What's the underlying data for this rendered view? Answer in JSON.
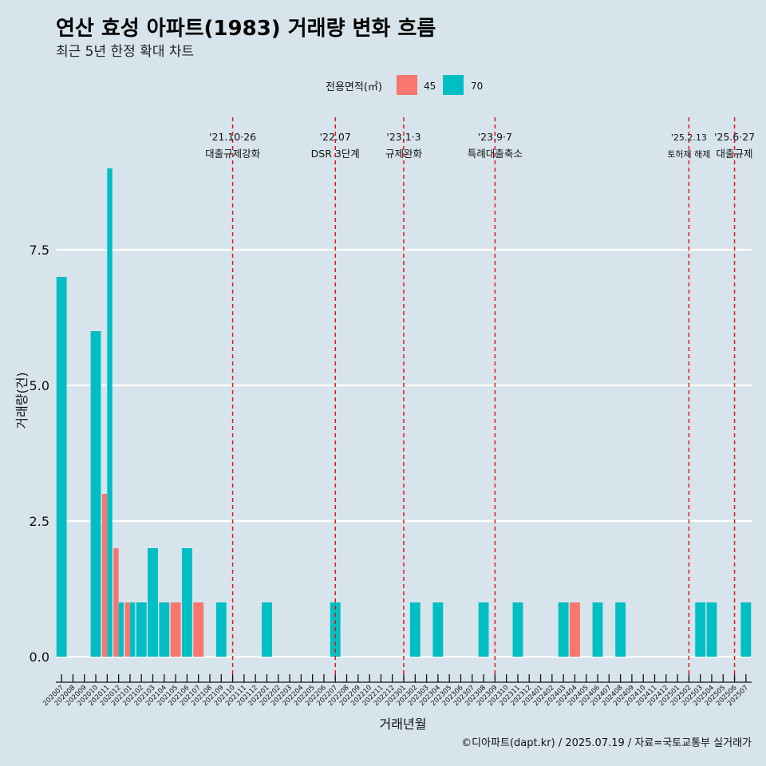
{
  "chart_data": {
    "type": "bar",
    "title": "연산 효성 아파트(1983) 거래량 변화 흐름",
    "subtitle": "최근 5년 한정 확대 차트",
    "xlabel": "거래년월",
    "ylabel": "거래량(건)",
    "caption": "©디아파트(dapt.kr) / 2025.07.19 / 자료=국토교통부 실거래가",
    "legend": {
      "title": "전용면적(㎡)",
      "position": "top"
    },
    "ylim": [
      0,
      9
    ],
    "yticks": [
      0,
      2.5,
      5,
      7.5
    ],
    "ytick_labels": [
      "0.0",
      "2.5",
      "5.0",
      "7.5"
    ],
    "grid": true,
    "categories": [
      "202007",
      "202008",
      "202009",
      "202010",
      "202011",
      "202012",
      "202101",
      "202102",
      "202103",
      "202104",
      "202105",
      "202106",
      "202107",
      "202108",
      "202109",
      "202110",
      "202111",
      "202112",
      "202201",
      "202202",
      "202203",
      "202204",
      "202205",
      "202206",
      "202207",
      "202208",
      "202209",
      "202210",
      "202211",
      "202212",
      "202301",
      "202302",
      "202303",
      "202304",
      "202305",
      "202306",
      "202307",
      "202308",
      "202309",
      "202310",
      "202311",
      "202312",
      "202401",
      "202402",
      "202403",
      "202404",
      "202405",
      "202406",
      "202407",
      "202408",
      "202409",
      "202410",
      "202411",
      "202412",
      "202501",
      "202502",
      "202503",
      "202504",
      "202505",
      "202506",
      "202507"
    ],
    "series": [
      {
        "name": "45",
        "color": "#F8766D",
        "values": [
          0,
          0,
          0,
          0,
          3,
          2,
          1,
          0,
          0,
          0,
          1,
          0,
          1,
          0,
          0,
          0,
          0,
          0,
          0,
          0,
          0,
          0,
          0,
          0,
          0,
          0,
          0,
          0,
          0,
          0,
          0,
          0,
          0,
          0,
          0,
          0,
          0,
          0,
          0,
          0,
          0,
          0,
          0,
          0,
          0,
          1,
          0,
          0,
          0,
          0,
          0,
          0,
          0,
          0,
          0,
          0,
          0,
          0,
          0,
          0,
          0
        ]
      },
      {
        "name": "70",
        "color": "#00BFC4",
        "values": [
          7,
          0,
          0,
          6,
          9,
          1,
          1,
          1,
          2,
          1,
          0,
          2,
          0,
          0,
          1,
          0,
          0,
          0,
          1,
          0,
          0,
          0,
          0,
          0,
          1,
          0,
          0,
          0,
          0,
          0,
          0,
          1,
          0,
          1,
          0,
          0,
          0,
          1,
          0,
          0,
          1,
          0,
          0,
          0,
          1,
          0,
          0,
          1,
          0,
          1,
          0,
          0,
          0,
          0,
          0,
          0,
          1,
          1,
          0,
          0,
          1
        ]
      }
    ],
    "events": [
      {
        "date": "'21.10·26",
        "label": "대출규제강화",
        "x": "202110",
        "offset": 0.0,
        "small": false
      },
      {
        "date": "'22.07",
        "label": "DSR 3단계",
        "x": "202207",
        "offset": 0.0,
        "small": false
      },
      {
        "date": "'23.1·3",
        "label": "규제완화",
        "x": "202301",
        "offset": 0.0,
        "small": false
      },
      {
        "date": "'23.9·7",
        "label": "특례대출축소",
        "x": "202309",
        "offset": 0.0,
        "small": false
      },
      {
        "date": "'25.2.13",
        "label": "토허제 해제",
        "x": "202502",
        "offset": 0.0,
        "small": true
      },
      {
        "date": "'25.6·27",
        "label": "대출규제",
        "x": "202506",
        "offset": 0.0,
        "small": false
      }
    ],
    "event_line_color": "#e8131b"
  }
}
